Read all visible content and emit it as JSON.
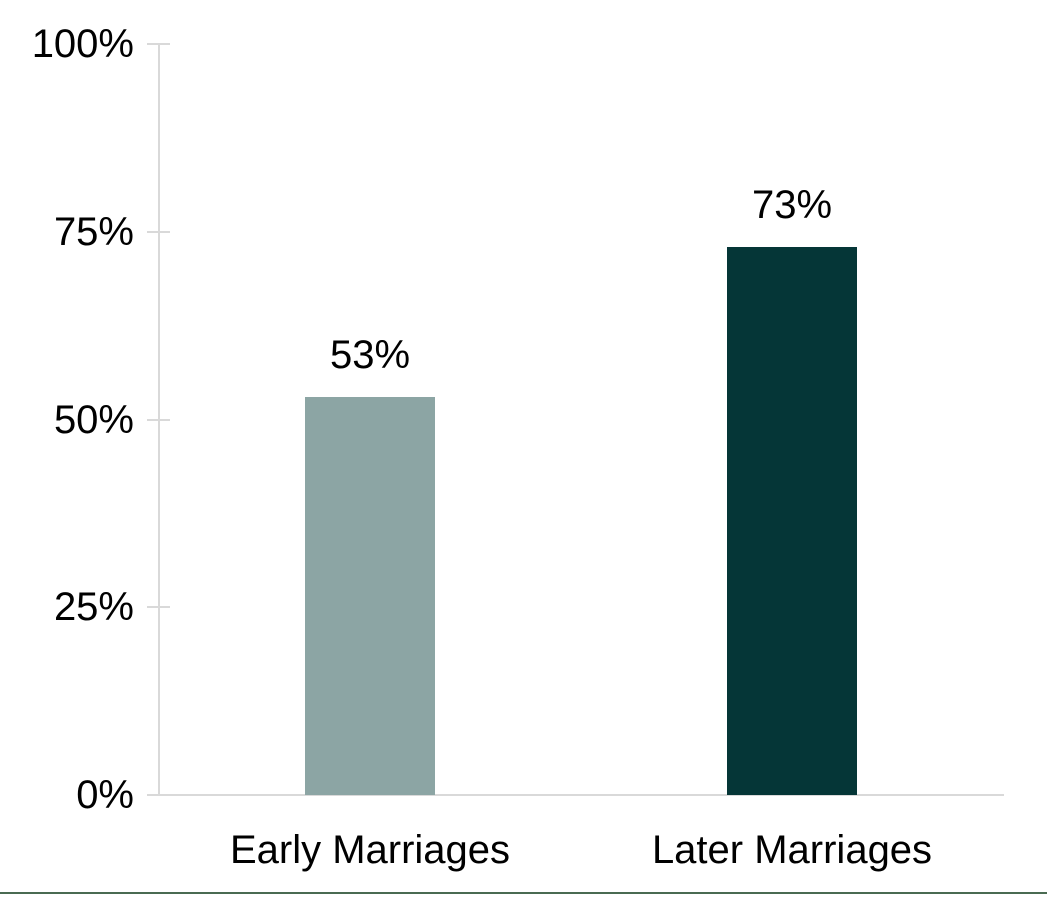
{
  "chart_data": {
    "type": "bar",
    "title": "",
    "xlabel": "",
    "ylabel": "",
    "categories": [
      "Early Marriages",
      "Later Marriages"
    ],
    "values": [
      53,
      73
    ],
    "data_labels": [
      "53%",
      "73%"
    ],
    "ylim": [
      0,
      100
    ],
    "y_tick_values": [
      0,
      25,
      50,
      75,
      100
    ],
    "y_tick_labels": [
      "0%",
      "25%",
      "50%",
      "75%",
      "100%"
    ],
    "grid": false,
    "legend": "none",
    "bar_colors": [
      "#8CA5A4",
      "#053637"
    ]
  },
  "style": {
    "axis_color": "#D9D9D9",
    "label_color": "#000000",
    "bottom_rule_color": "#4A6B52",
    "background": "#FFFFFF"
  }
}
